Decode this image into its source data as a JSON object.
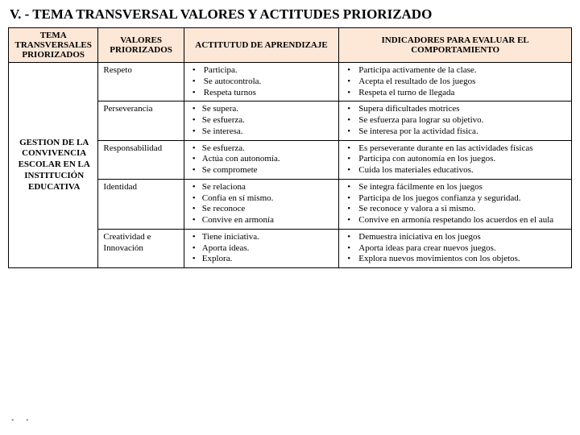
{
  "title": "V. -  TEMA TRANSVERSAL VALORES Y ACTITUDES PRIORIZADO",
  "headers": {
    "c1": "TEMA TRANSVERSALES PRIORIZADOS",
    "c2": "VALORES PRIORIZADOS",
    "c3": "ACTITUTUD DE APRENDIZAJE",
    "c4": "INDICADORES PARA EVALUAR EL COMPORTAMIENTO"
  },
  "rowhead": "GESTION DE LA CONVIVENCIA ESCOLAR EN LA INSTITUCIÓN EDUCATIVA",
  "rows": [
    {
      "valor": "Respeto",
      "act": [
        "Participa.",
        "Se autocontrola.",
        "Respeta turnos"
      ],
      "ind": [
        "Participa activamente de la clase.",
        "Acepta el resultado de los juegos",
        "Respeta el turno de llegada"
      ]
    },
    {
      "valor": "Perseverancia",
      "act": [
        "Se supera.",
        "Se esfuerza.",
        "Se interesa."
      ],
      "ind": [
        "Supera dificultades motrices",
        "Se esfuerza para lograr su objetivo.",
        "Se interesa por la actividad física."
      ]
    },
    {
      "valor": "Responsabilidad",
      "act": [
        "Se esfuerza.",
        "Actúa con autonomía.",
        "Se compromete"
      ],
      "ind": [
        "Es perseverante durante en las actividades físicas",
        "Participa con autonomía en los juegos.",
        "Cuida los materiales educativos."
      ]
    },
    {
      "valor": "Identidad",
      "act": [
        "Se relaciona",
        "Confía en sí mismo.",
        "Se reconoce",
        "Convive en armonía"
      ],
      "ind": [
        "Se integra fácilmente en los juegos",
        "Participa de los juegos confianza y seguridad.",
        "Se reconoce y valora a si mismo.",
        "Convive en armonía respetando los acuerdos en el aula"
      ]
    },
    {
      "valor": "Creatividad e Innovación",
      "act": [
        "Tiene iniciativa.",
        "Aporta ideas.",
        "Explora."
      ],
      "ind": [
        "Demuestra iniciativa en los juegos",
        "Aporta ideas para crear nuevos juegos.",
        "Explora nuevos movimientos con los objetos."
      ]
    }
  ],
  "colors": {
    "header_bg": "#fde7d7",
    "border": "#000000"
  }
}
